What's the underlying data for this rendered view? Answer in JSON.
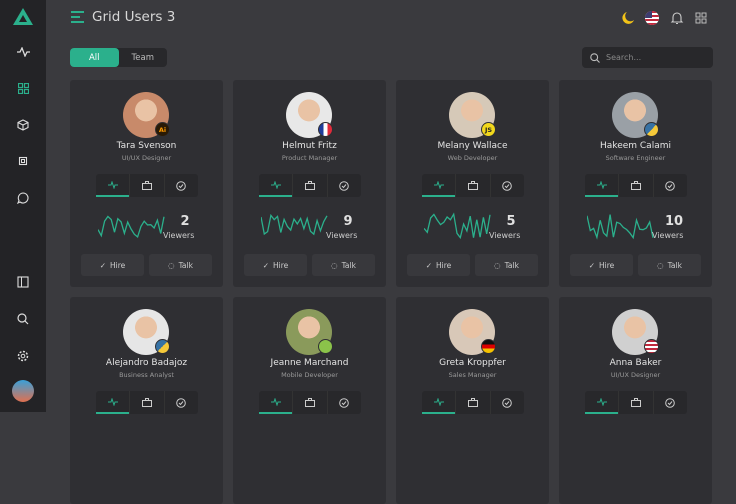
{
  "header": {
    "title": "Grid Users 3"
  },
  "filter": {
    "tabs": [
      "All",
      "Team"
    ],
    "active": "All"
  },
  "search": {
    "placeholder": "Search..."
  },
  "accent": "#2bb08c",
  "sidebar": {
    "icons": [
      "logo",
      "activity-icon",
      "grid-icon",
      "box-icon",
      "cpu-icon",
      "chat-icon",
      "panel-icon",
      "search-icon",
      "settings-icon",
      "user-avatar"
    ]
  },
  "header_icons": [
    "moon-icon",
    "us-flag-icon",
    "bell-icon",
    "apps-grid-icon"
  ],
  "card_labels": {
    "viewers": "Viewers",
    "hire": "Hire",
    "talk": "Talk"
  },
  "users": [
    {
      "name": "Tara Svenson",
      "role": "UI/UX Designer",
      "viewers": "2",
      "badge": "Ai",
      "badge_icon": "illustrator-icon"
    },
    {
      "name": "Helmut Fritz",
      "role": "Product Manager",
      "viewers": "9",
      "badge": "",
      "badge_icon": "france-flag-icon"
    },
    {
      "name": "Melany Wallace",
      "role": "Web Developer",
      "viewers": "5",
      "badge": "JS",
      "badge_icon": "javascript-icon"
    },
    {
      "name": "Hakeem Calami",
      "role": "Software Engineer",
      "viewers": "10",
      "badge": "",
      "badge_icon": "python-icon"
    },
    {
      "name": "Alejandro Badajoz",
      "role": "Business Analyst",
      "viewers": "",
      "badge": "",
      "badge_icon": "python-icon"
    },
    {
      "name": "Jeanne Marchand",
      "role": "Mobile Developer",
      "viewers": "",
      "badge": "",
      "badge_icon": "android-icon"
    },
    {
      "name": "Greta Kroppfer",
      "role": "Sales Manager",
      "viewers": "",
      "badge": "",
      "badge_icon": "germany-flag-icon"
    },
    {
      "name": "Anna Baker",
      "role": "UI/UX Designer",
      "viewers": "",
      "badge": "",
      "badge_icon": "us-flag-icon"
    }
  ]
}
